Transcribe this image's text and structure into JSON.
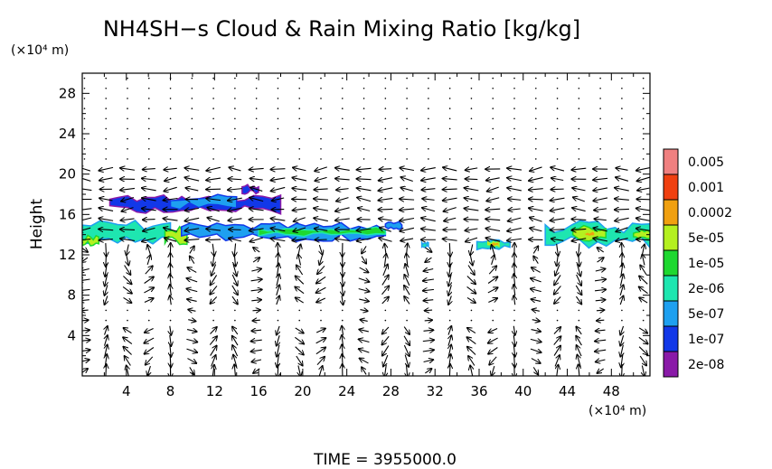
{
  "chart_data": {
    "type": "heatmap",
    "title": "NH4SH−s Cloud & Rain Mixing Ratio [kg/kg]",
    "ylabel": "Height",
    "y_unit": "(×10⁴ m)",
    "x_unit": "(×10⁴ m)",
    "xlim": [
      0,
      51.5
    ],
    "ylim": [
      0,
      30
    ],
    "x_ticks": [
      4,
      8,
      12,
      16,
      20,
      24,
      28,
      32,
      36,
      40,
      44,
      48
    ],
    "y_ticks": [
      4,
      8,
      12,
      16,
      20,
      24,
      28
    ],
    "time_label": "TIME  =  3955000.0",
    "colorbar": {
      "levels": [
        {
          "label": "2e-08",
          "color": "#8a1aa8"
        },
        {
          "label": "1e-07",
          "color": "#1238e8"
        },
        {
          "label": "5e-07",
          "color": "#1ea0f0"
        },
        {
          "label": "2e-06",
          "color": "#1ee6b0"
        },
        {
          "label": "1e-05",
          "color": "#1ed830"
        },
        {
          "label": "5e-05",
          "color": "#b4f020"
        },
        {
          "label": "0.0002",
          "color": "#f0a010"
        },
        {
          "label": "0.001",
          "color": "#f04010"
        },
        {
          "label": "0.005",
          "color": "#f08080"
        }
      ]
    },
    "cloud_regions": [
      {
        "x0": 0.0,
        "x1": 8.0,
        "y0": 13.0,
        "y1": 15.5,
        "level": 3
      },
      {
        "x0": 0.0,
        "x1": 1.5,
        "y0": 12.8,
        "y1": 14.0,
        "level": 5
      },
      {
        "x0": 2.5,
        "x1": 18.0,
        "y0": 16.0,
        "y1": 18.0,
        "level": 1
      },
      {
        "x0": 8.0,
        "x1": 14.0,
        "y0": 16.5,
        "y1": 18.0,
        "level": 2
      },
      {
        "x0": 14.5,
        "x1": 16.0,
        "y0": 18.0,
        "y1": 19.0,
        "level": 1
      },
      {
        "x0": 7.5,
        "x1": 9.5,
        "y0": 13.0,
        "y1": 15.0,
        "level": 5
      },
      {
        "x0": 9.0,
        "x1": 27.5,
        "y0": 13.3,
        "y1": 15.2,
        "level": 2
      },
      {
        "x0": 16.0,
        "x1": 27.5,
        "y0": 13.8,
        "y1": 14.8,
        "level": 4
      },
      {
        "x0": 27.5,
        "x1": 29.0,
        "y0": 14.5,
        "y1": 15.3,
        "level": 2
      },
      {
        "x0": 30.8,
        "x1": 31.4,
        "y0": 12.7,
        "y1": 13.3,
        "level": 3
      },
      {
        "x0": 35.8,
        "x1": 38.8,
        "y0": 12.5,
        "y1": 13.5,
        "level": 3
      },
      {
        "x0": 36.8,
        "x1": 37.8,
        "y0": 12.8,
        "y1": 13.3,
        "level": 6
      },
      {
        "x0": 42.0,
        "x1": 51.5,
        "y0": 12.5,
        "y1": 15.5,
        "level": 3
      },
      {
        "x0": 44.5,
        "x1": 47.5,
        "y0": 13.3,
        "y1": 15.0,
        "level": 5
      },
      {
        "x0": 45.5,
        "x1": 46.5,
        "y0": 13.8,
        "y1": 14.4,
        "level": 6
      },
      {
        "x0": 50.0,
        "x1": 51.5,
        "y0": 13.5,
        "y1": 14.5,
        "level": 5
      }
    ],
    "wind_vectors": "unlabeled quiver field (← dominant near 13–19, circulation cells below)"
  }
}
